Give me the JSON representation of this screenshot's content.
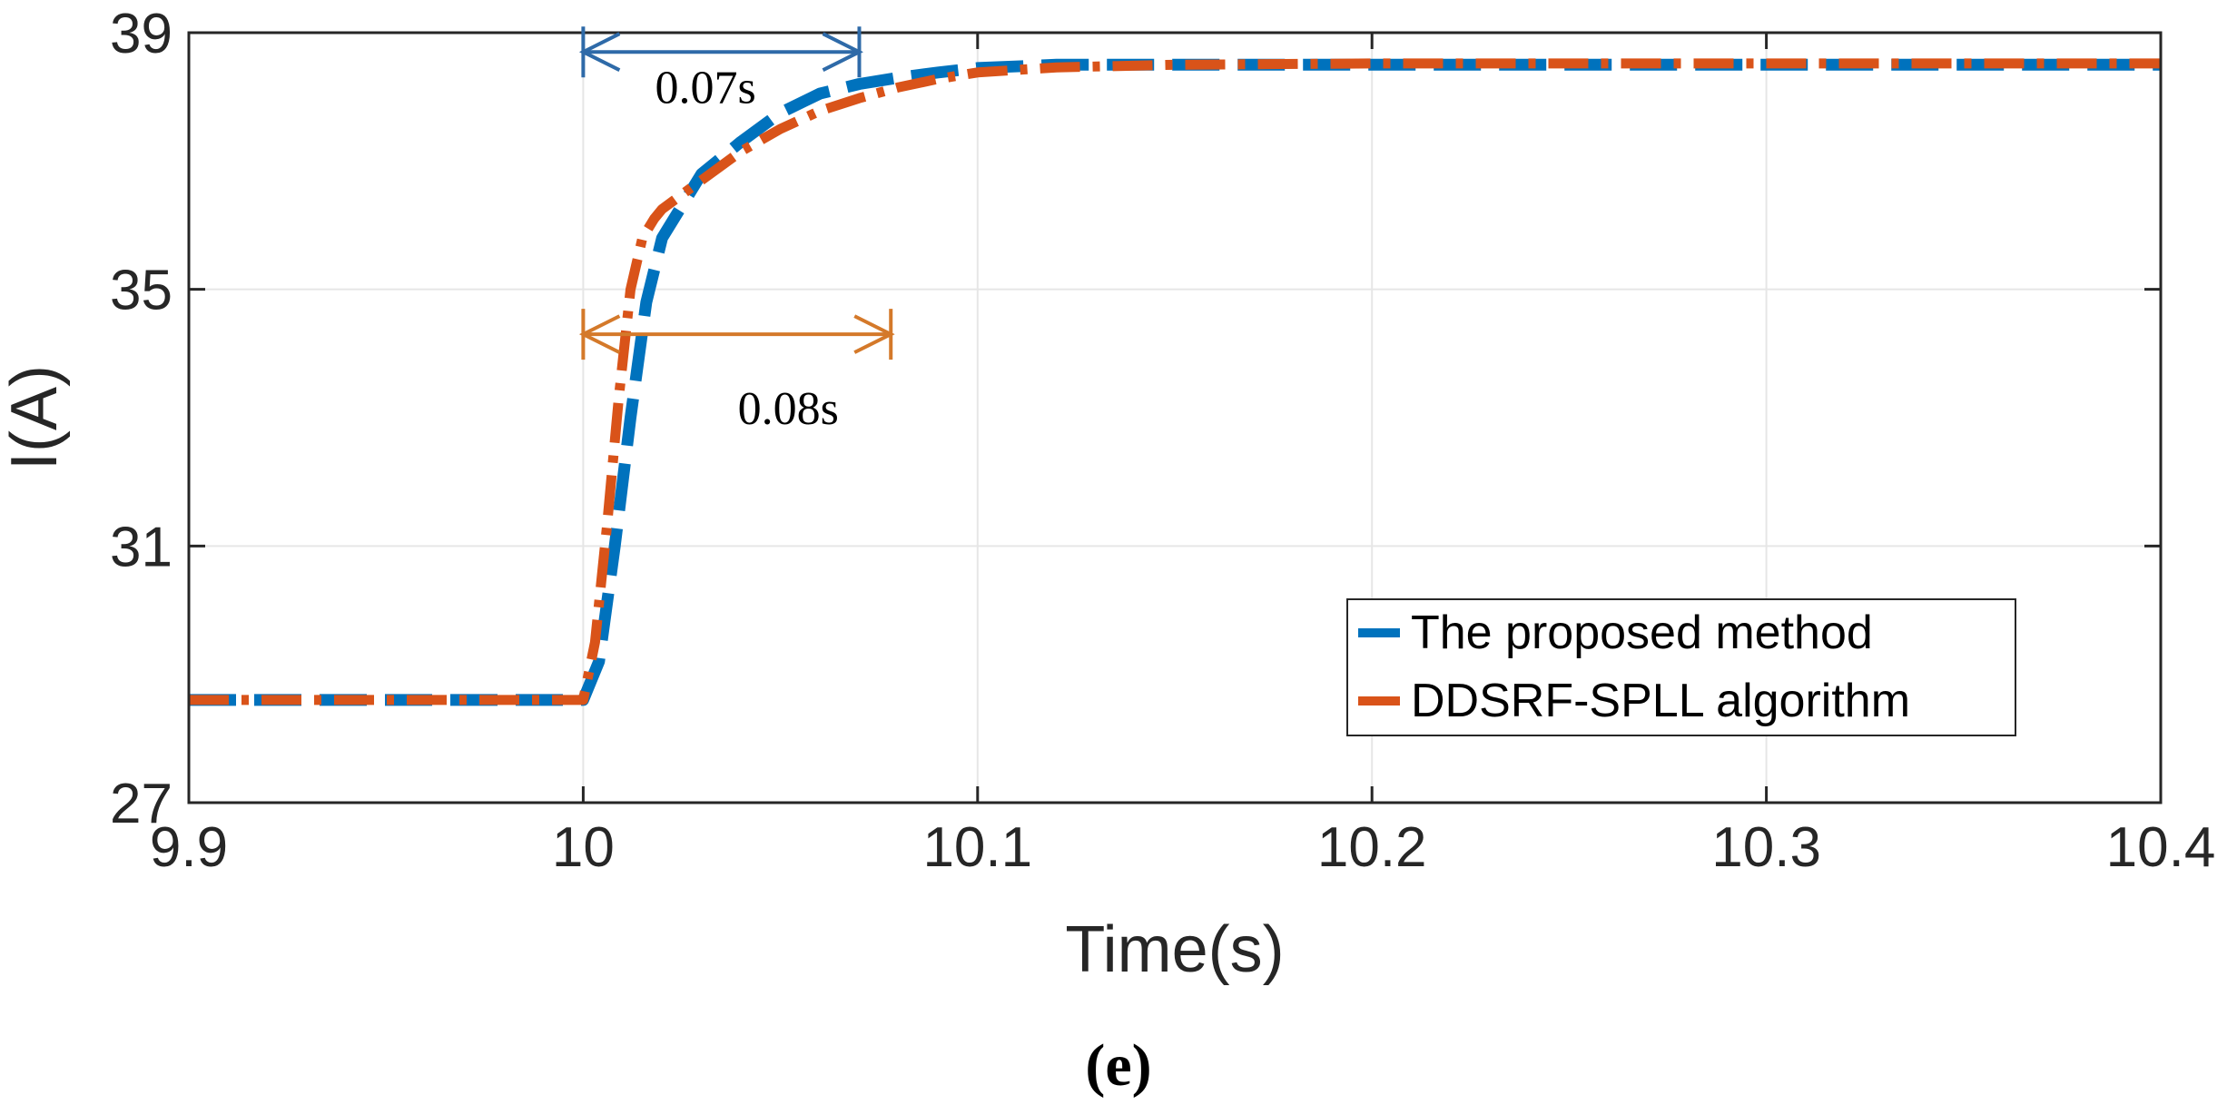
{
  "chart_data": {
    "type": "line",
    "title": "",
    "xlabel": "Time(s)",
    "ylabel": "I(A)",
    "xlim": [
      9.9,
      10.4
    ],
    "ylim": [
      27,
      39
    ],
    "xticks": [
      9.9,
      10,
      10.1,
      10.2,
      10.3,
      10.4
    ],
    "xtick_labels": [
      "9.9",
      "10",
      "10.1",
      "10.2",
      "10.3",
      "10.4"
    ],
    "yticks": [
      27,
      31,
      35,
      39
    ],
    "ytick_labels": [
      "27",
      "31",
      "35",
      "39"
    ],
    "grid": true,
    "legend_position": "bottom-right",
    "series": [
      {
        "name": "The proposed method",
        "color": "#0072BD",
        "style": "dashed",
        "x": [
          9.9,
          10.0,
          10.004,
          10.008,
          10.012,
          10.016,
          10.02,
          10.025,
          10.03,
          10.04,
          10.05,
          10.06,
          10.07,
          10.08,
          10.09,
          10.1,
          10.12,
          10.15,
          10.2,
          10.3,
          10.4
        ],
        "y": [
          28.6,
          28.6,
          29.2,
          31.0,
          33.0,
          34.8,
          35.8,
          36.3,
          36.8,
          37.3,
          37.75,
          38.05,
          38.2,
          38.3,
          38.38,
          38.45,
          38.5,
          38.5,
          38.5,
          38.5,
          38.5
        ]
      },
      {
        "name": "DDSRF-SPLL algorithm",
        "color": "#D95319",
        "style": "dashdot",
        "x": [
          9.9,
          10.0,
          10.003,
          10.006,
          10.009,
          10.012,
          10.015,
          10.018,
          10.02,
          10.03,
          10.04,
          10.05,
          10.06,
          10.07,
          10.08,
          10.09,
          10.1,
          10.12,
          10.15,
          10.2,
          10.3,
          10.4
        ],
        "y": [
          28.6,
          28.6,
          29.5,
          31.3,
          33.3,
          35.0,
          35.8,
          36.1,
          36.25,
          36.7,
          37.15,
          37.5,
          37.78,
          37.98,
          38.15,
          38.28,
          38.38,
          38.46,
          38.5,
          38.52,
          38.52,
          38.52
        ]
      }
    ],
    "annotations": [
      {
        "text": "0.07s",
        "x_start": 10.0,
        "x_end": 10.07,
        "y": 38.7,
        "label_x": 10.031,
        "label_y": 37.9,
        "color": "#2E6AA8"
      },
      {
        "text": "0.08s",
        "x_start": 10.0,
        "x_end": 10.078,
        "y": 34.3,
        "label_x": 10.052,
        "label_y": 32.9,
        "color": "#D4792A"
      }
    ]
  },
  "caption": "(e)",
  "axis_color": "#262626",
  "grid_color": "#E6E6E6"
}
